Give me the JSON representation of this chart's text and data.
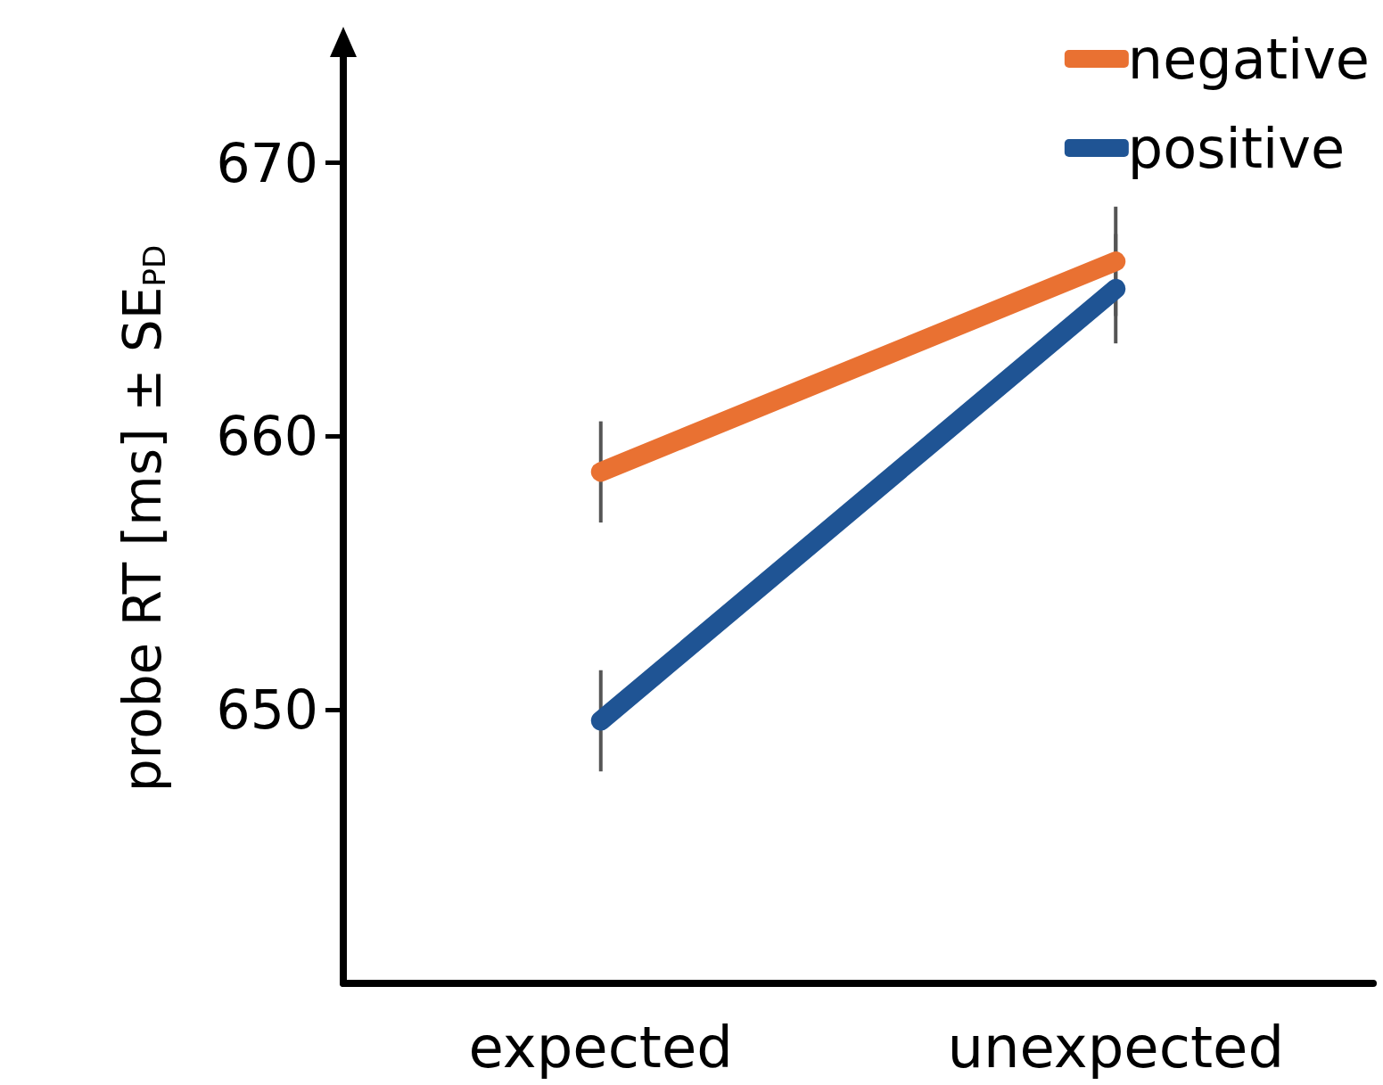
{
  "chart_data": {
    "type": "line",
    "ylabel": "probe RT [ms] ± SE$_{PD}$",
    "categories": [
      "expected",
      "unexpected"
    ],
    "series": [
      {
        "name": "negative",
        "color": "#e97132",
        "values": [
          658.7,
          666.4
        ],
        "errors": [
          1.85,
          2.0
        ]
      },
      {
        "name": "positive",
        "color": "#1f5494",
        "values": [
          649.6,
          665.4
        ],
        "errors": [
          1.85,
          2.0
        ]
      }
    ],
    "ylim": [
      640,
      674
    ],
    "yticks": [
      650,
      660,
      670
    ],
    "grid": false,
    "legend": "top right",
    "line_style": "solid"
  }
}
